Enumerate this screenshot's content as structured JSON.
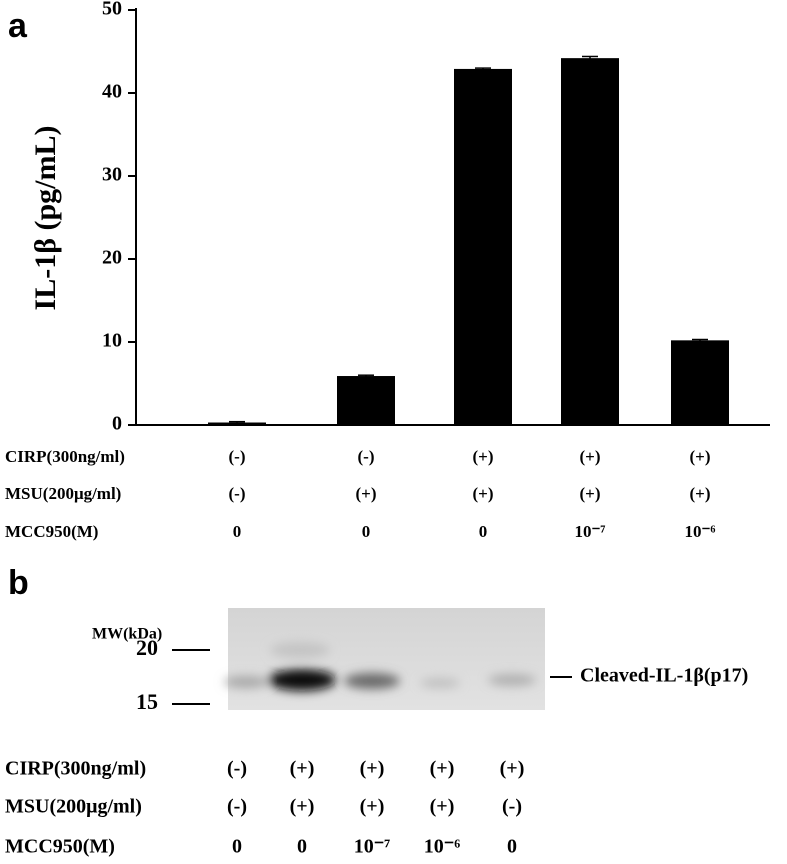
{
  "chart_data": {
    "type": "bar",
    "panel": "a",
    "y_label": "IL-1β (pg/mL)",
    "categories": [
      null,
      null,
      null,
      null,
      null
    ],
    "values": [
      0.3,
      5.9,
      42.9,
      44.2,
      10.2
    ],
    "errors": [
      0.1,
      0.1,
      0.1,
      0.2,
      0.1
    ],
    "color": "#000000",
    "ylim": [
      0,
      50
    ],
    "yticks": [
      0,
      10,
      20,
      30,
      40,
      50
    ],
    "conditions": [
      {
        "label": "CIRP(300ng/ml)",
        "values": [
          "(-)",
          "(-)",
          "(+)",
          "(+)",
          "(+)"
        ]
      },
      {
        "label": "MSU(200μg/ml)",
        "values": [
          "(-)",
          "(+)",
          "(+)",
          "(+)",
          "(+)"
        ]
      },
      {
        "label": "MCC950(M)",
        "values": [
          "0",
          "0",
          "0",
          "10⁻⁷",
          "10⁻⁶"
        ]
      }
    ]
  },
  "blot": {
    "panel": "b",
    "mw_label": "MW(kDa)",
    "mw_markers": [
      20,
      15
    ],
    "band_label": "Cleaved-IL-1β(p17)",
    "conditions": [
      {
        "label": "CIRP(300ng/ml)",
        "values": [
          "(-)",
          "(+)",
          "(+)",
          "(+)",
          "(+)"
        ]
      },
      {
        "label": "MSU(200μg/ml)",
        "values": [
          "(-)",
          "(+)",
          "(+)",
          "(+)",
          "(-)"
        ]
      },
      {
        "label": "MCC950(M)",
        "values": [
          "0",
          "0",
          "10⁻⁷",
          "10⁻⁶",
          "0"
        ]
      }
    ]
  }
}
